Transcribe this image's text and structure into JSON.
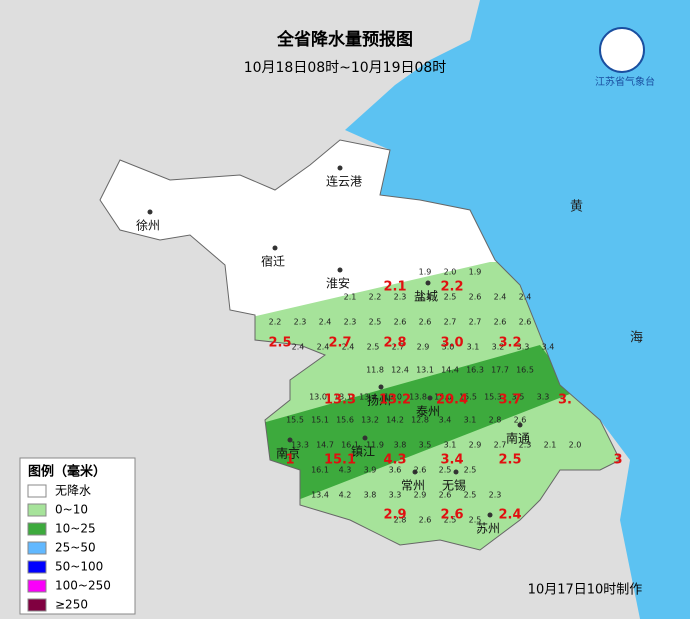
{
  "header": {
    "title": "全省降水量预报图",
    "subtitle": "10月18日08时~10月19日08时"
  },
  "logo": {
    "name": "江苏省气象台"
  },
  "sea_labels": [
    "黄",
    "海"
  ],
  "cities": [
    "连云港",
    "徐州",
    "宿迁",
    "淮安",
    "盐城",
    "扬州",
    "泰州",
    "南京",
    "镇江",
    "南通",
    "常州",
    "无锡",
    "苏州"
  ],
  "legend": {
    "title": "图例（毫米）",
    "items": [
      {
        "label": "无降水",
        "color": "#ffffff"
      },
      {
        "label": "0~10",
        "color": "#a6e39a"
      },
      {
        "label": "10~25",
        "color": "#3daa3d"
      },
      {
        "label": "25~50",
        "color": "#61b8ff"
      },
      {
        "label": "50~100",
        "color": "#0000fe"
      },
      {
        "label": "100~250",
        "color": "#fa00fa"
      },
      {
        "label": "≥250",
        "color": "#800040"
      }
    ]
  },
  "red_values": [
    "2.1",
    "2.2",
    "2.5",
    "2.7",
    "2.8",
    "3.0",
    "3.2",
    "13.3",
    "13.2",
    "20.4",
    "3.7",
    "3.",
    "15.1",
    "4.3",
    "3.4",
    "2.5",
    "2.9",
    "2.6",
    "2.4",
    "1",
    "3"
  ],
  "station_rows": [
    [
      "1.9",
      "2.0",
      "1.9"
    ],
    [
      "2.1",
      "2.2",
      "2.3",
      "2.4",
      "2.5",
      "2.6",
      "2.4",
      "2.4"
    ],
    [
      "2.2",
      "2.3",
      "2.4",
      "2.3",
      "2.5",
      "2.6",
      "2.6",
      "2.7",
      "2.7",
      "2.6",
      "2.6"
    ],
    [
      "2.4",
      "2.4",
      "2.4",
      "2.5",
      "2.7",
      "2.9",
      "3.0",
      "3.1",
      "3.2",
      "3.3",
      "3.4"
    ],
    [
      "11.8",
      "12.4",
      "13.1",
      "14.4",
      "16.3",
      "17.7",
      "16.5"
    ],
    [
      "13.0",
      "13.1",
      "13.4",
      "13.0",
      "13.8",
      "15.0",
      "15.5",
      "15.3",
      "3.5",
      "3.3"
    ],
    [
      "15.5",
      "15.1",
      "15.6",
      "13.2",
      "14.2",
      "12.8",
      "3.4",
      "3.1",
      "2.8",
      "2.6"
    ],
    [
      "13.3",
      "14.7",
      "16.1",
      "11.9",
      "3.8",
      "3.5",
      "3.1",
      "2.9",
      "2.7",
      "2.3",
      "2.1",
      "2.0"
    ],
    [
      "16.1",
      "4.3",
      "3.9",
      "3.6",
      "2.6",
      "2.5",
      "2.5"
    ],
    [
      "13.4",
      "4.2",
      "3.8",
      "3.3",
      "2.9",
      "2.6",
      "2.5",
      "2.3"
    ],
    [
      "2.8",
      "2.6",
      "2.5",
      "2.5"
    ]
  ],
  "footer": "10月17日10时制作"
}
